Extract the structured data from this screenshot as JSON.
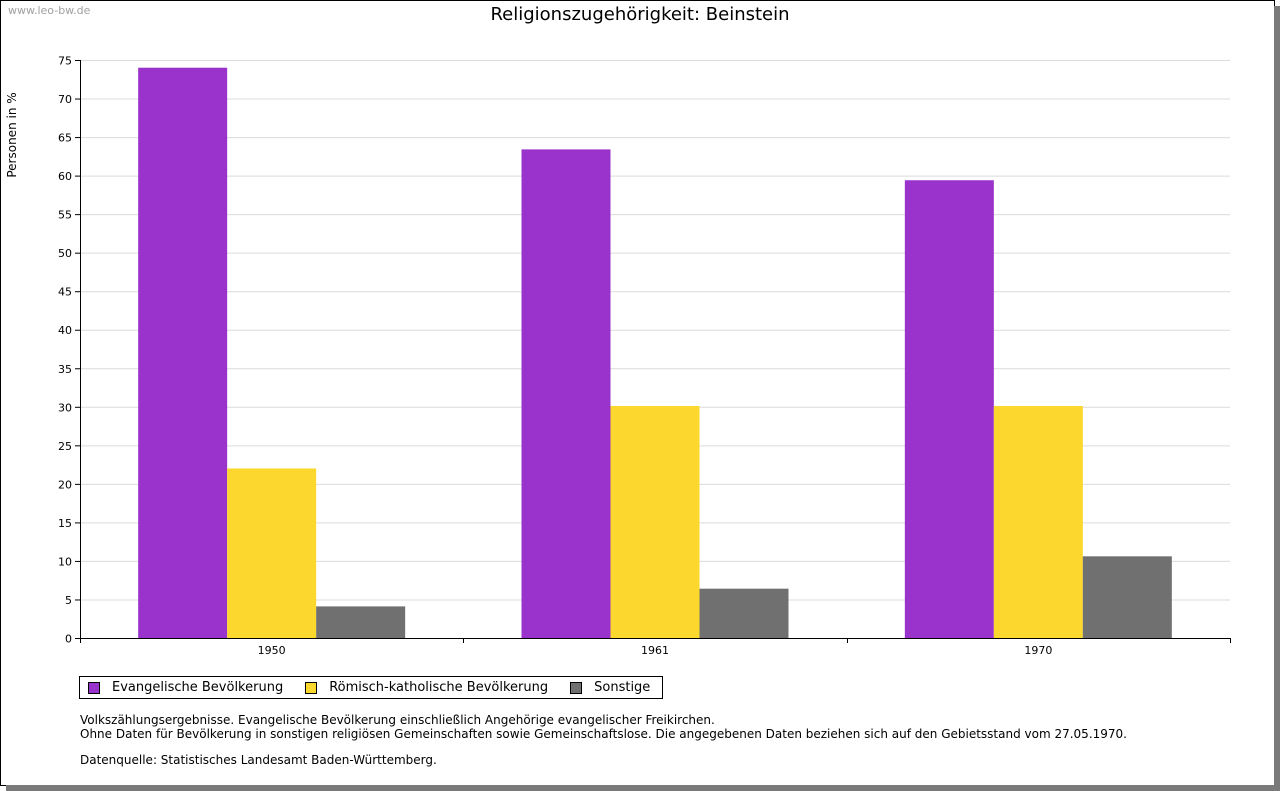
{
  "watermark": "www.leo-bw.de",
  "chart_data": {
    "type": "bar",
    "title": "Religionszugehörigkeit: Beinstein",
    "xlabel": "",
    "ylabel": "Personen in %",
    "ylim": [
      0,
      75
    ],
    "yticks": [
      0,
      5,
      10,
      15,
      20,
      25,
      30,
      35,
      40,
      45,
      50,
      55,
      60,
      65,
      70,
      75
    ],
    "grid": true,
    "legend_position": "bottom-left",
    "categories": [
      "1950",
      "1961",
      "1970"
    ],
    "series": [
      {
        "name": "Evangelische Bevölkerung",
        "color": "#9933cc",
        "values": [
          74.0,
          63.4,
          59.4
        ]
      },
      {
        "name": "Römisch-katholische Bevölkerung",
        "color": "#fcd72d",
        "values": [
          22.0,
          30.1,
          30.1
        ]
      },
      {
        "name": "Sonstige",
        "color": "#707070",
        "values": [
          4.1,
          6.4,
          10.6
        ]
      }
    ]
  },
  "notes": {
    "line1": "Volkszählungsergebnisse. Evangelische Bevölkerung einschließlich Angehörige evangelischer Freikirchen.",
    "line2": "Ohne Daten für Bevölkerung in sonstigen religiösen Gemeinschaften sowie Gemeinschaftslose. Die angegebenen Daten beziehen sich auf den Gebietsstand vom 27.05.1970.",
    "source": "Datenquelle: Statistisches Landesamt Baden-Württemberg."
  }
}
